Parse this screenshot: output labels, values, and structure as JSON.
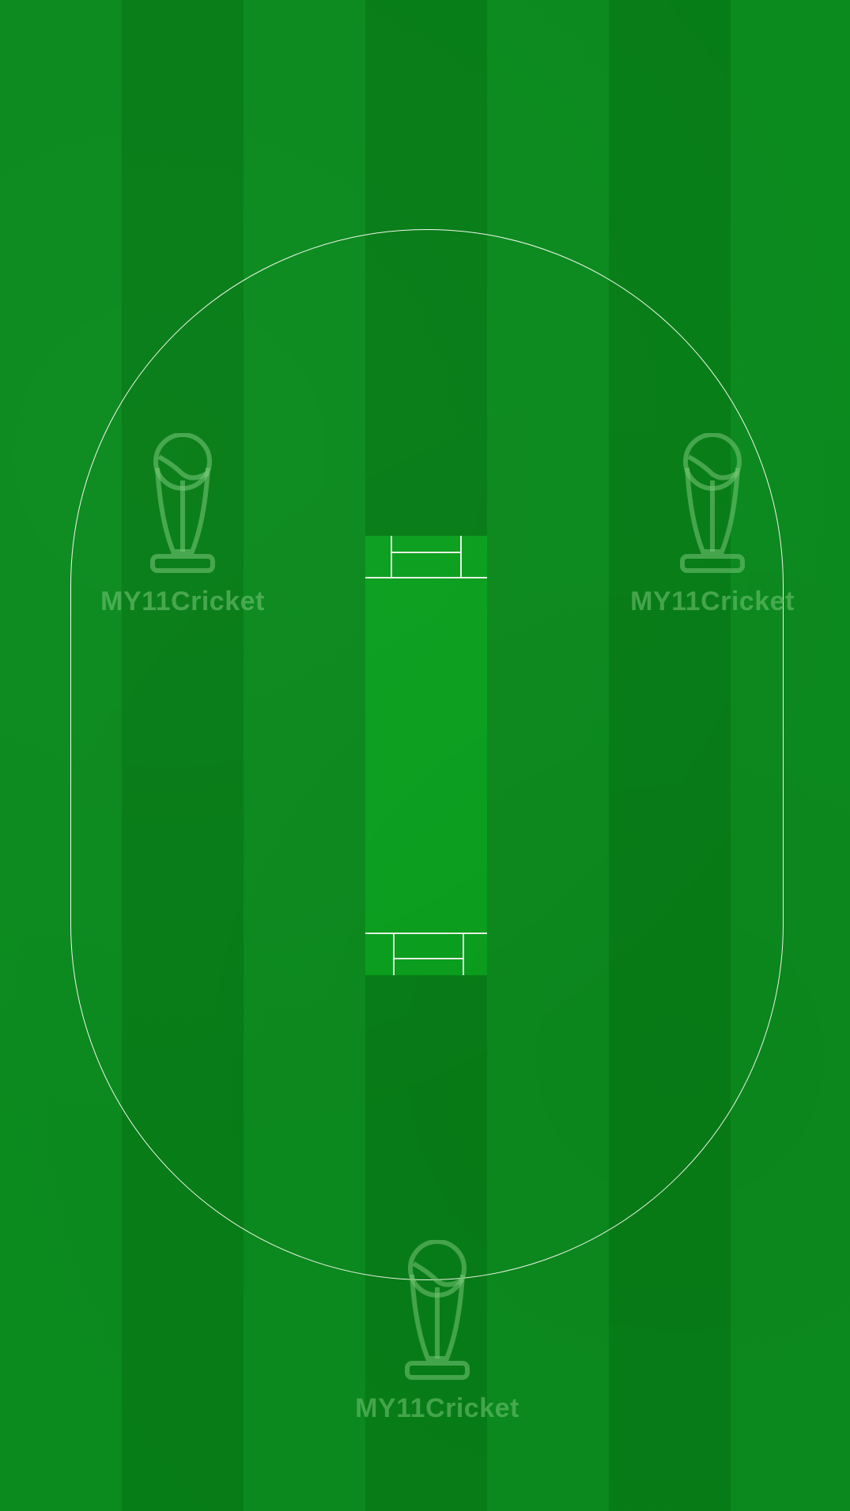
{
  "field": {
    "stripe_light": "#0b8a1e",
    "stripe_dark": "#077d17",
    "pitch_color": "#0aa01e",
    "boundary_color": "#f2f7ee"
  },
  "watermarks": [
    {
      "icon": "trophy-icon",
      "text": "MY11Cricket"
    },
    {
      "icon": "trophy-icon",
      "text": "MY11Cricket"
    },
    {
      "icon": "trophy-icon",
      "text": "MY11Cricket"
    }
  ]
}
